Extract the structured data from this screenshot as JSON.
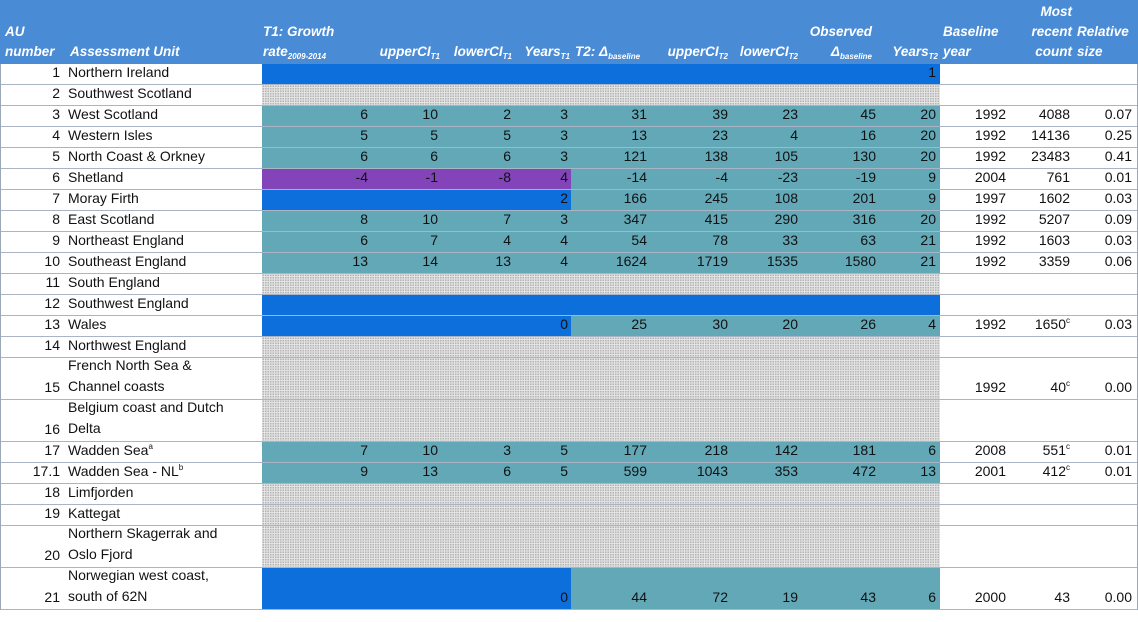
{
  "header": {
    "au_number": [
      "AU",
      "number"
    ],
    "assessment_unit": "Assessment Unit",
    "t1_growth": "T1: Growth",
    "rate": "rate",
    "rate_sub": "2009-2014",
    "upper_t1": "upperCI",
    "upper_t1_sub": "T1",
    "lower_t1": "lowerCI",
    "lower_t1_sub": "T1",
    "years_t1": "Years",
    "years_t1_sub": "T1",
    "t2": "T2: Δ",
    "t2_sub": "baseline",
    "upper_t2": "upperCI",
    "upper_t2_sub": "T2",
    "lower_t2": "lowerCI",
    "lower_t2_sub": "T2",
    "observed": "Observed",
    "observed_delta": "Δ",
    "observed_sub": "baseline",
    "years_t2": "Years",
    "years_t2_sub": "T2",
    "baseline_year": [
      "Baseline",
      "year"
    ],
    "most_recent": [
      "Most",
      "recent",
      "count"
    ],
    "relative": [
      "Relative",
      "size"
    ]
  },
  "rows": [
    {
      "au": "1",
      "unit": [
        "Northern Ireland"
      ],
      "fill": "blue",
      "blue_end": "y2",
      "values": {
        "y2": "1"
      }
    },
    {
      "au": "2",
      "unit": [
        "Southwest Scotland"
      ],
      "fill": "dots",
      "values": {}
    },
    {
      "au": "3",
      "unit": [
        "West Scotland"
      ],
      "fill": "teal",
      "values": {
        "g": "6",
        "u1": "10",
        "l1": "2",
        "y1": "3",
        "t2": "31",
        "u2": "39",
        "l2": "23",
        "obs": "45",
        "y2": "20",
        "by": "1992",
        "cnt": "4088",
        "rel": "0.07"
      }
    },
    {
      "au": "4",
      "unit": [
        "Western Isles"
      ],
      "fill": "teal",
      "values": {
        "g": "5",
        "u1": "5",
        "l1": "5",
        "y1": "3",
        "t2": "13",
        "u2": "23",
        "l2": "4",
        "obs": "16",
        "y2": "20",
        "by": "1992",
        "cnt": "14136",
        "rel": "0.25"
      }
    },
    {
      "au": "5",
      "unit": [
        "North Coast & Orkney"
      ],
      "fill": "teal",
      "values": {
        "g": "6",
        "u1": "6",
        "l1": "6",
        "y1": "3",
        "t2": "121",
        "u2": "138",
        "l2": "105",
        "obs": "130",
        "y2": "20",
        "by": "1992",
        "cnt": "23483",
        "rel": "0.41"
      }
    },
    {
      "au": "6",
      "unit": [
        "Shetland"
      ],
      "fill": "purple",
      "values": {
        "g": "-4",
        "u1": "-1",
        "l1": "-8",
        "y1": "4",
        "t2": "-14",
        "u2": "-4",
        "l2": "-23",
        "obs": "-19",
        "y2": "9",
        "by": "2004",
        "cnt": "761",
        "rel": "0.01"
      }
    },
    {
      "au": "7",
      "unit": [
        "Moray Firth"
      ],
      "fill": "blue-t1",
      "values": {
        "y1": "2",
        "t2": "166",
        "u2": "245",
        "l2": "108",
        "obs": "201",
        "y2": "9",
        "by": "1997",
        "cnt": "1602",
        "rel": "0.03"
      }
    },
    {
      "au": "8",
      "unit": [
        "East Scotland"
      ],
      "fill": "teal",
      "values": {
        "g": "8",
        "u1": "10",
        "l1": "7",
        "y1": "3",
        "t2": "347",
        "u2": "415",
        "l2": "290",
        "obs": "316",
        "y2": "20",
        "by": "1992",
        "cnt": "5207",
        "rel": "0.09"
      }
    },
    {
      "au": "9",
      "unit": [
        "Northeast England"
      ],
      "fill": "teal",
      "values": {
        "g": "6",
        "u1": "7",
        "l1": "4",
        "y1": "4",
        "t2": "54",
        "u2": "78",
        "l2": "33",
        "obs": "63",
        "y2": "21",
        "by": "1992",
        "cnt": "1603",
        "rel": "0.03"
      }
    },
    {
      "au": "10",
      "unit": [
        "Southeast England"
      ],
      "fill": "teal",
      "values": {
        "g": "13",
        "u1": "14",
        "l1": "13",
        "y1": "4",
        "t2": "1624",
        "u2": "1719",
        "l2": "1535",
        "obs": "1580",
        "y2": "21",
        "by": "1992",
        "cnt": "3359",
        "rel": "0.06"
      }
    },
    {
      "au": "11",
      "unit": [
        "South England"
      ],
      "fill": "dots",
      "values": {}
    },
    {
      "au": "12",
      "unit": [
        "Southwest England"
      ],
      "fill": "blue",
      "blue_end": "end",
      "values": {}
    },
    {
      "au": "13",
      "unit": [
        "Wales"
      ],
      "fill": "blue-t1",
      "values": {
        "y1": "0",
        "t2": "25",
        "u2": "30",
        "l2": "20",
        "obs": "26",
        "y2": "4",
        "by": "1992",
        "cnt": "1650",
        "cnt_sup": "c",
        "rel": "0.03"
      }
    },
    {
      "au": "14",
      "unit": [
        "Northwest England"
      ],
      "fill": "dots",
      "values": {}
    },
    {
      "au": "15",
      "unit": [
        "French North Sea &",
        "Channel coasts"
      ],
      "fill": "dots",
      "values": {
        "by": "1992",
        "cnt": "40",
        "cnt_sup": "c",
        "rel": "0.00"
      }
    },
    {
      "au": "16",
      "unit": [
        "Belgium coast and Dutch",
        "Delta"
      ],
      "fill": "dots",
      "values": {}
    },
    {
      "au": "17",
      "unit": [
        "Wadden Sea"
      ],
      "unit_sup": "a",
      "fill": "teal",
      "values": {
        "g": "7",
        "u1": "10",
        "l1": "3",
        "y1": "5",
        "t2": "177",
        "u2": "218",
        "l2": "142",
        "obs": "181",
        "y2": "6",
        "by": "2008",
        "cnt": "551",
        "cnt_sup": "c",
        "rel": "0.01"
      }
    },
    {
      "au": "17.1",
      "unit": [
        "Wadden Sea - NL"
      ],
      "unit_sup": "b",
      "fill": "teal",
      "values": {
        "g": "9",
        "u1": "13",
        "l1": "6",
        "y1": "5",
        "t2": "599",
        "u2": "1043",
        "l2": "353",
        "obs": "472",
        "y2": "13",
        "by": "2001",
        "cnt": "412",
        "cnt_sup": "c",
        "rel": "0.01"
      }
    },
    {
      "au": "18",
      "unit": [
        "Limfjorden"
      ],
      "fill": "dots",
      "values": {}
    },
    {
      "au": "19",
      "unit": [
        "Kattegat"
      ],
      "fill": "dots",
      "values": {}
    },
    {
      "au": "20",
      "unit": [
        "Northern Skagerrak and",
        "Oslo Fjord"
      ],
      "fill": "dots",
      "values": {}
    },
    {
      "au": "21",
      "unit": [
        "Norwegian west coast,",
        "south of 62N"
      ],
      "fill": "blue-t1",
      "values": {
        "y1": "0",
        "t2": "44",
        "u2": "72",
        "l2": "19",
        "obs": "43",
        "y2": "6",
        "by": "2000",
        "cnt": "43",
        "rel": "0.00"
      }
    }
  ],
  "colors": {
    "header": "#4a8bd6",
    "blue": "#0d6fdb",
    "teal": "#63a8b7",
    "purple": "#8244b8",
    "dots": "#e4e4e4"
  }
}
